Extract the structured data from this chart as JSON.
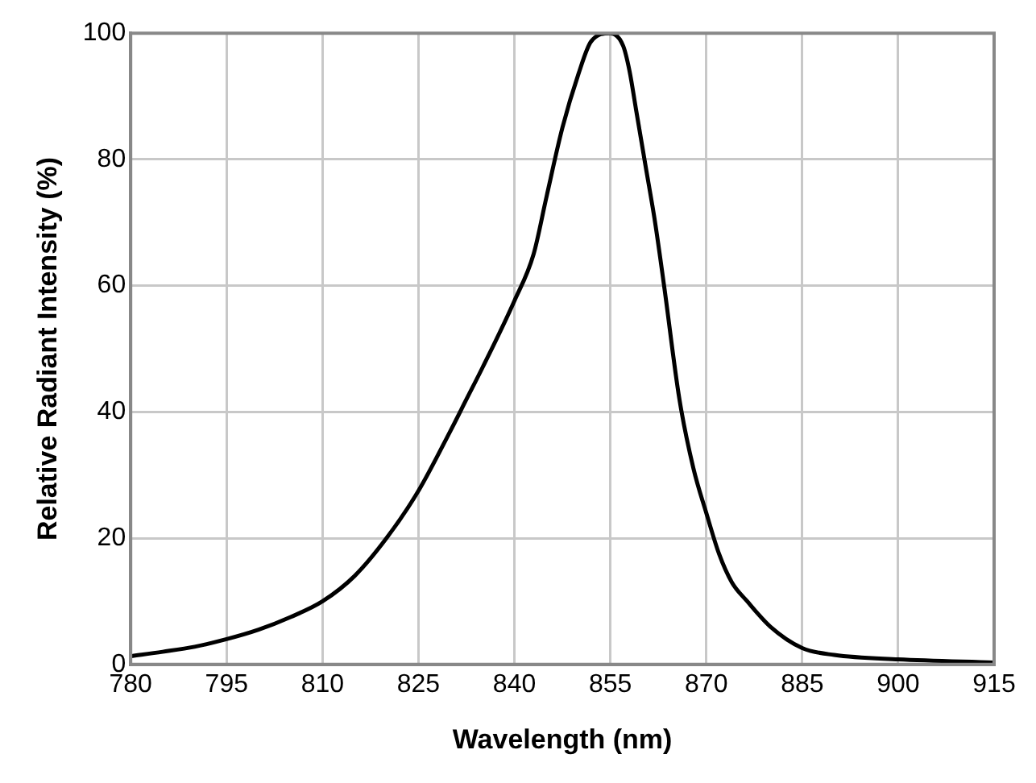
{
  "chart_data": {
    "type": "line",
    "xlabel": "Wavelength (nm)",
    "ylabel": "Relative Radiant Intensity (%)",
    "x": [
      780,
      785,
      790,
      795,
      800,
      805,
      810,
      815,
      820,
      825,
      830,
      832.5,
      835,
      840,
      843,
      845,
      847.5,
      850,
      852,
      855,
      857,
      858,
      859,
      860.5,
      862,
      863.4,
      865.8,
      868,
      870,
      872,
      874,
      876.4,
      880,
      885,
      890,
      900,
      915
    ],
    "series": [
      {
        "color": "#000000",
        "values": [
          1.3,
          2,
          2.8,
          4,
          5.5,
          7.5,
          10,
          14,
          20,
          27.5,
          37,
          42,
          47,
          57.6,
          65,
          74,
          85,
          93.5,
          98.7,
          100,
          98,
          94,
          88,
          79,
          70,
          60,
          42,
          31,
          24,
          17.5,
          13,
          10,
          6,
          2.6,
          1.5,
          0.8,
          0.3
        ]
      }
    ],
    "xlim": [
      780,
      915
    ],
    "xticks": [
      780,
      795,
      810,
      825,
      840,
      855,
      870,
      885,
      900,
      915
    ],
    "ylim": [
      0,
      100
    ],
    "yticks": [
      0,
      20,
      40,
      60,
      80,
      100
    ],
    "grid": true,
    "marker": "none",
    "line_style": "solid",
    "legend": false
  }
}
